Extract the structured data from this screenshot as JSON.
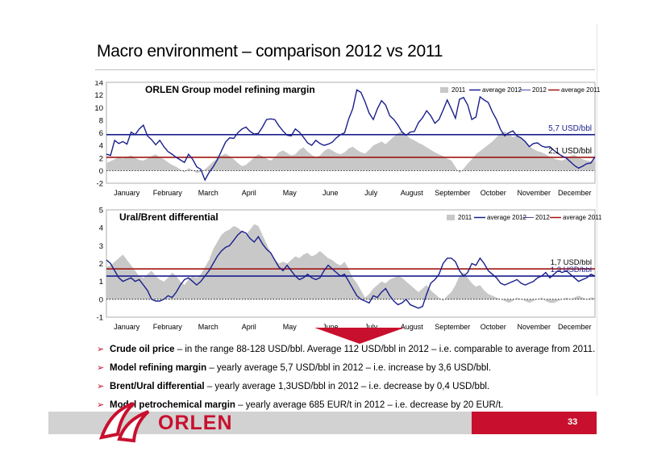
{
  "slide": {
    "title": "Macro environment – comparison 2012 vs 2011",
    "page_number": "33",
    "logo_text": "ORLEN"
  },
  "colors": {
    "accent_red": "#c8102e",
    "series_2012": "#1a1f8c",
    "area_2011": "#c8c8c8",
    "avg_2011": "#a01414"
  },
  "chart_data": [
    {
      "type": "area",
      "title": "ORLEN Group model refining margin",
      "ylim": [
        -2,
        14
      ],
      "yticks": [
        -2,
        0,
        2,
        4,
        6,
        8,
        10,
        12,
        14
      ],
      "months": [
        "January",
        "February",
        "March",
        "April",
        "May",
        "June",
        "July",
        "August",
        "September",
        "October",
        "November",
        "December"
      ],
      "legend": [
        "2011",
        "average 2012",
        "2012",
        "average 2011"
      ],
      "avg_2012": 5.7,
      "avg_2011": 2.1,
      "avg_2012_label": "5,7 USD/bbl",
      "avg_2011_label": "2,1 USD/bbl",
      "series_2012": [
        2.6,
        2.4,
        4.8,
        4.3,
        4.6,
        4.2,
        6.1,
        5.7,
        6.6,
        7.2,
        5.5,
        4.9,
        4.1,
        4.8,
        3.8,
        3.0,
        2.6,
        2.1,
        1.7,
        1.3,
        2.6,
        1.8,
        0.6,
        0.2,
        -1.5,
        -0.3,
        0.6,
        1.7,
        3.1,
        4.5,
        5.2,
        5.1,
        6.0,
        6.6,
        6.9,
        6.2,
        5.8,
        5.9,
        6.9,
        8.1,
        8.2,
        8.1,
        7.1,
        6.3,
        5.6,
        5.5,
        6.6,
        6.1,
        5.3,
        4.4,
        4.0,
        4.8,
        4.3,
        4.0,
        4.2,
        4.5,
        5.2,
        5.7,
        6.0,
        8.2,
        9.8,
        12.8,
        12.4,
        10.9,
        9.1,
        8.1,
        9.8,
        11.1,
        10.4,
        8.7,
        8.1,
        7.2,
        6.1,
        5.6,
        6.1,
        6.2,
        7.6,
        8.4,
        9.5,
        8.7,
        7.5,
        8.1,
        9.6,
        11.2,
        9.8,
        8.3,
        11.3,
        11.6,
        10.4,
        8.1,
        8.5,
        11.7,
        11.2,
        10.8,
        9.3,
        8.1,
        6.5,
        5.5,
        6.0,
        6.3,
        5.5,
        5.2,
        4.6,
        3.8,
        4.3,
        4.4,
        3.9,
        3.7,
        3.8,
        3.2,
        2.7,
        2.3,
        2.0,
        1.4,
        0.8,
        0.4,
        0.7,
        1.1,
        1.2,
        2.2
      ],
      "series_2011": [
        1.2,
        1.5,
        1.8,
        2.1,
        1.9,
        2.2,
        2.4,
        2.0,
        1.7,
        1.6,
        1.9,
        2.3,
        2.6,
        2.1,
        1.8,
        1.3,
        0.9,
        0.6,
        0.2,
        -0.3,
        0.4,
        0.1,
        -0.4,
        -0.2,
        0.2,
        0.8,
        1.4,
        2.0,
        2.4,
        2.7,
        2.3,
        1.8,
        1.2,
        0.7,
        0.9,
        1.5,
        2.1,
        2.6,
        2.3,
        1.9,
        1.6,
        2.1,
        2.9,
        3.2,
        2.8,
        2.4,
        2.6,
        3.3,
        3.7,
        3.0,
        2.5,
        2.1,
        2.4,
        3.1,
        3.5,
        3.2,
        2.8,
        2.6,
        2.9,
        3.5,
        3.8,
        3.3,
        2.9,
        2.7,
        3.3,
        4.0,
        4.3,
        4.6,
        4.2,
        4.8,
        5.4,
        5.9,
        6.3,
        5.7,
        5.1,
        4.8,
        4.4,
        4.1,
        3.7,
        3.3,
        2.9,
        2.6,
        2.3,
        1.9,
        1.6,
        0.6,
        -0.4,
        0.3,
        1.1,
        1.8,
        2.6,
        3.1,
        3.6,
        4.1,
        4.6,
        5.3,
        5.9,
        6.2,
        5.8,
        5.3,
        5.6,
        5.1,
        4.6,
        3.9,
        3.4,
        3.1,
        2.9,
        2.6,
        2.2,
        1.9,
        1.7,
        1.6,
        1.9,
        2.3,
        2.5,
        2.1,
        1.8,
        1.6,
        1.5,
        1.7
      ]
    },
    {
      "type": "area",
      "title": "Ural/Brent differential",
      "ylim": [
        -1,
        5
      ],
      "yticks": [
        -1,
        0,
        1,
        2,
        3,
        4,
        5
      ],
      "months": [
        "January",
        "February",
        "March",
        "April",
        "May",
        "June",
        "July",
        "August",
        "September",
        "October",
        "November",
        "December"
      ],
      "legend": [
        "2011",
        "average 2012",
        "2012",
        "average 2011"
      ],
      "avg_2012": 1.3,
      "avg_2011": 1.7,
      "avg_2012_label": "1,3 USD/bbl",
      "avg_2011_label": "1,7 USD/bbl",
      "series_2012": [
        2.2,
        2.0,
        1.6,
        1.2,
        1.0,
        1.1,
        1.2,
        1.0,
        1.1,
        0.8,
        0.5,
        0.0,
        -0.1,
        -0.1,
        0.0,
        0.2,
        0.1,
        0.4,
        0.8,
        1.1,
        1.2,
        1.0,
        0.8,
        1.0,
        1.3,
        1.6,
        2.0,
        2.4,
        2.7,
        2.9,
        3.0,
        3.3,
        3.6,
        3.8,
        3.7,
        3.4,
        3.2,
        3.5,
        3.1,
        2.8,
        2.6,
        2.2,
        1.8,
        1.6,
        1.9,
        1.6,
        1.3,
        1.1,
        1.2,
        1.4,
        1.2,
        1.1,
        1.2,
        1.6,
        1.9,
        1.7,
        1.5,
        1.3,
        1.4,
        1.0,
        0.6,
        0.2,
        0.0,
        -0.1,
        -0.2,
        0.2,
        0.1,
        0.4,
        0.6,
        0.2,
        -0.1,
        -0.3,
        -0.2,
        0.0,
        -0.3,
        -0.4,
        -0.5,
        -0.4,
        0.3,
        0.9,
        1.1,
        1.4,
        2.0,
        2.3,
        2.3,
        2.1,
        1.6,
        1.3,
        1.5,
        2.0,
        1.9,
        2.3,
        2.0,
        1.6,
        1.4,
        1.2,
        0.9,
        0.8,
        0.9,
        1.0,
        1.1,
        0.9,
        0.8,
        0.9,
        1.0,
        1.2,
        1.3,
        1.5,
        1.2,
        1.4,
        1.6,
        1.5,
        1.6,
        1.4,
        1.2,
        1.0,
        1.1,
        1.2,
        1.4,
        1.3
      ],
      "series_2011": [
        1.8,
        1.9,
        2.1,
        2.3,
        2.5,
        2.2,
        1.9,
        1.6,
        1.3,
        1.2,
        1.4,
        1.6,
        1.3,
        1.1,
        1.0,
        1.2,
        1.5,
        1.3,
        1.0,
        0.8,
        1.1,
        1.3,
        1.2,
        1.4,
        1.8,
        2.2,
        2.8,
        3.2,
        3.6,
        3.8,
        3.9,
        4.1,
        4.0,
        3.8,
        3.6,
        3.9,
        4.2,
        4.1,
        3.6,
        3.1,
        2.6,
        2.2,
        2.0,
        2.1,
        2.0,
        2.2,
        2.4,
        2.3,
        2.5,
        2.6,
        2.4,
        2.5,
        2.7,
        2.5,
        2.3,
        2.2,
        2.0,
        1.9,
        2.1,
        1.7,
        1.2,
        0.9,
        0.5,
        0.1,
        0.3,
        0.6,
        0.8,
        1.0,
        0.9,
        1.1,
        1.2,
        1.3,
        1.2,
        1.0,
        0.8,
        0.6,
        0.4,
        0.6,
        0.8,
        0.5,
        0.3,
        0.1,
        -0.1,
        0.2,
        0.4,
        0.8,
        1.3,
        1.5,
        1.2,
        0.9,
        0.7,
        0.8,
        0.5,
        0.3,
        0.2,
        0.1,
        0.0,
        -0.1,
        -0.2,
        -0.1,
        0.1,
        0.0,
        -0.1,
        -0.2,
        -0.1,
        0.0,
        0.1,
        -0.1,
        -0.2,
        -0.2,
        -0.1,
        0.0,
        0.1,
        0.0,
        0.1,
        0.2,
        0.1,
        0.0,
        0.1,
        0.1
      ]
    }
  ],
  "bullets": [
    {
      "bold": "Crude oil price",
      "text": " – in the range 88-128 USD/bbl. Average 112 USD/bbl in 2012 – i.e. comparable to average from 2011."
    },
    {
      "bold": "Model refining margin",
      "text": " – yearly average 5,7 USD/bbl in 2012 – i.e. increase by 3,6 USD/bbl."
    },
    {
      "bold": "Brent/Ural differential",
      "text": " –  yearly average 1,3USD/bbl in 2012 – i.e. decrease by 0,4 USD/bbl."
    },
    {
      "bold": "Model petrochemical margin",
      "text": " – yearly average 685 EUR/t in 2012 – i.e. decrease by 20 EUR/t."
    }
  ]
}
